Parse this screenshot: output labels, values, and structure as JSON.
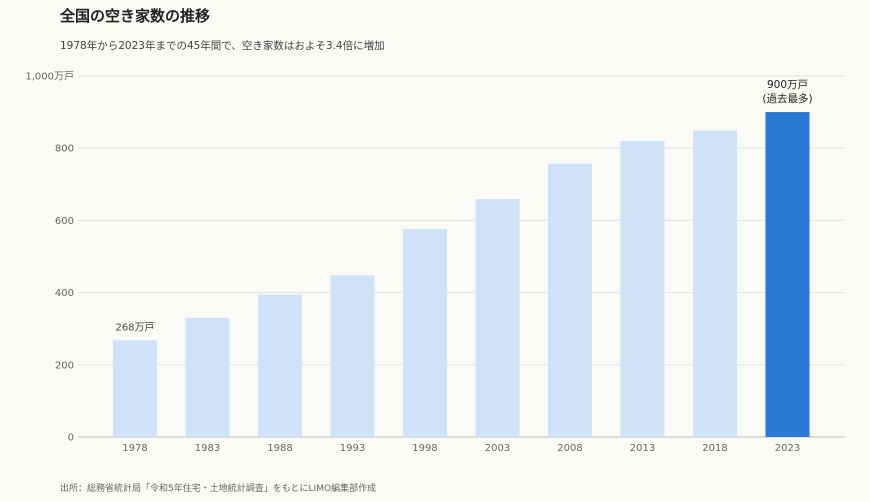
{
  "header": {
    "title": "全国の空き家数の推移",
    "subtitle": "1978年から2023年までの45年間で、空き家数はおよそ3.4倍に増加"
  },
  "footer": {
    "source": "出所：総務省統計局「令和5年住宅・土地統計調査」をもとにLIMO編集部作成"
  },
  "colors": {
    "bar": "#cfe2f8",
    "highlight": "#2878d4",
    "grid": "#e3e3e3",
    "axis": "#bdbdbd"
  },
  "chart_data": {
    "type": "bar",
    "categories": [
      "1978",
      "1983",
      "1988",
      "1993",
      "1998",
      "2003",
      "2008",
      "2013",
      "2018",
      "2023"
    ],
    "values": [
      268,
      330,
      394,
      448,
      576,
      659,
      757,
      820,
      849,
      900
    ],
    "highlight_index": 9,
    "ylim": [
      0,
      1000
    ],
    "yticks": [
      0,
      200,
      400,
      600,
      800,
      1000
    ],
    "ytick_labels": [
      "0",
      "200",
      "400",
      "600",
      "800",
      "1,000万戸"
    ],
    "grid": true,
    "annotations": [
      {
        "index": 0,
        "lines": [
          "268万戸"
        ],
        "strong": false
      },
      {
        "index": 9,
        "lines": [
          "900万戸",
          "(過去最多)"
        ],
        "strong": true
      }
    ]
  }
}
